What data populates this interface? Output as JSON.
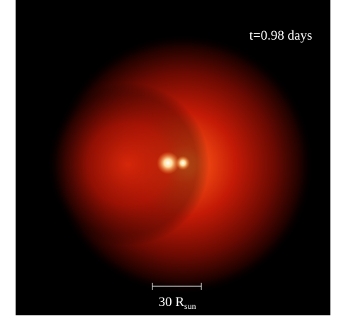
{
  "time_label": "t=0.98 days",
  "scale_bar": {
    "label": "30 R",
    "subscript": "sun"
  }
}
